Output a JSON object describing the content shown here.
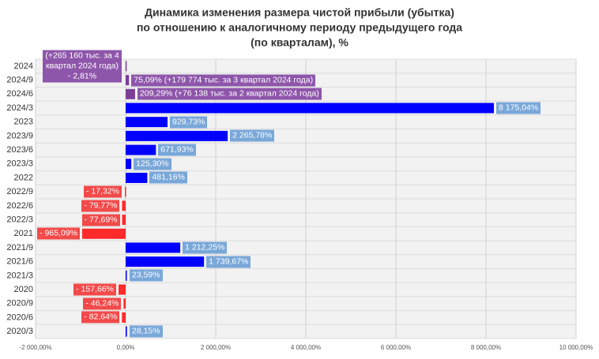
{
  "chart_data": {
    "type": "bar",
    "orientation": "horizontal",
    "title": [
      "Динамика изменения размера чистой прибыли (убытка)",
      "по отношению к аналогичному периоду предыдущего года",
      "(по кварталам), %"
    ],
    "categories": [
      "2024",
      "2024/9",
      "2024/6",
      "2024/3",
      "2023",
      "2023/9",
      "2023/6",
      "2023/3",
      "2022",
      "2022/9",
      "2022/6",
      "2022/3",
      "2021",
      "2021/9",
      "2021/6",
      "2021/3",
      "2020",
      "2020/9",
      "2020/6",
      "2020/3"
    ],
    "values": [
      -2.81,
      75.09,
      209.29,
      8175.04,
      929.73,
      2265.78,
      671.93,
      125.3,
      481.16,
      -17.32,
      -79.77,
      -77.69,
      -965.09,
      1212.25,
      1739.67,
      23.59,
      -157.66,
      -46.24,
      -82.64,
      28.15
    ],
    "value_labels": [
      "(+265 160 тыс. за 4 квартал 2024 года) - 2,81%",
      "75,09% (+179 774 тыс. за 3 квартал 2024 года)",
      "209,29% (+76 138 тыс. за 2 квартал 2024 года)",
      "8 175,04%",
      "929,73%",
      "2 265,78%",
      "671,93%",
      "125,30%",
      "481,16%",
      "- 17,32%",
      "- 79,77%",
      "- 77,69%",
      "- 965,09%",
      "1 212,25%",
      "1 739,67%",
      "23,59%",
      "- 157,66%",
      "- 46,24%",
      "- 82,64%",
      "28,15%"
    ],
    "colors": [
      "#7b3f98",
      "#7b3f98",
      "#7b3f98",
      "#0000ff",
      "#0000ff",
      "#0000ff",
      "#0000ff",
      "#0000ff",
      "#0000ff",
      "#ff2a2a",
      "#ff2a2a",
      "#ff2a2a",
      "#ff2a2a",
      "#0000ff",
      "#0000ff",
      "#0000ff",
      "#ff2a2a",
      "#ff2a2a",
      "#ff2a2a",
      "#0000ff"
    ],
    "label_colors": [
      "#8e56aa",
      "#8e56aa",
      "#8e56aa",
      "#79a7d9",
      "#79a7d9",
      "#79a7d9",
      "#79a7d9",
      "#79a7d9",
      "#79a7d9",
      "#f24a4a",
      "#f24a4a",
      "#f24a4a",
      "#f24a4a",
      "#79a7d9",
      "#79a7d9",
      "#79a7d9",
      "#f24a4a",
      "#f24a4a",
      "#f24a4a",
      "#79a7d9"
    ],
    "xlim": [
      -2000,
      10000
    ],
    "xticks": [
      {
        "value": -2000,
        "label": "-2 000,00%"
      },
      {
        "value": 0,
        "label": "0,00%"
      },
      {
        "value": 2000,
        "label": "2 000,00%"
      },
      {
        "value": 4000,
        "label": "4 000,00%"
      },
      {
        "value": 6000,
        "label": "6 000,00%"
      },
      {
        "value": 8000,
        "label": "8 000,00%"
      },
      {
        "value": 10000,
        "label": "10 000,00%"
      }
    ],
    "grid": true
  }
}
